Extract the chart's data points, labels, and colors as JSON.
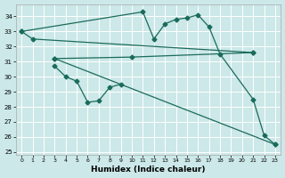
{
  "xlabel": "Humidex (Indice chaleur)",
  "bg_color": "#cce8e8",
  "grid_color": "#ffffff",
  "line_color": "#1a6b5a",
  "xlim": [
    -0.5,
    23.5
  ],
  "ylim": [
    24.8,
    34.8
  ],
  "yticks": [
    25,
    26,
    27,
    28,
    29,
    30,
    31,
    32,
    33,
    34
  ],
  "xticks": [
    0,
    1,
    2,
    3,
    4,
    5,
    6,
    7,
    8,
    9,
    10,
    11,
    12,
    13,
    14,
    15,
    16,
    17,
    18,
    19,
    20,
    21,
    22,
    23
  ],
  "series_diagonal_top": {
    "x": [
      0,
      1,
      21
    ],
    "y": [
      33.0,
      32.5,
      31.6
    ]
  },
  "series_flat": {
    "x": [
      3,
      10,
      21
    ],
    "y": [
      31.2,
      31.3,
      31.6
    ]
  },
  "series_steep": {
    "x": [
      3,
      23
    ],
    "y": [
      31.2,
      25.5
    ]
  },
  "series_zigzag": {
    "x": [
      3,
      4,
      5,
      6,
      7,
      8,
      9
    ],
    "y": [
      30.7,
      30.0,
      29.7,
      28.3,
      28.4,
      29.3,
      29.5
    ]
  },
  "series_peak": {
    "x": [
      0,
      11,
      12,
      13,
      14,
      15,
      16,
      17,
      18,
      21,
      22,
      23
    ],
    "y": [
      33.0,
      34.3,
      32.5,
      33.5,
      33.8,
      33.9,
      34.1,
      33.3,
      31.5,
      28.5,
      26.1,
      25.5
    ]
  }
}
